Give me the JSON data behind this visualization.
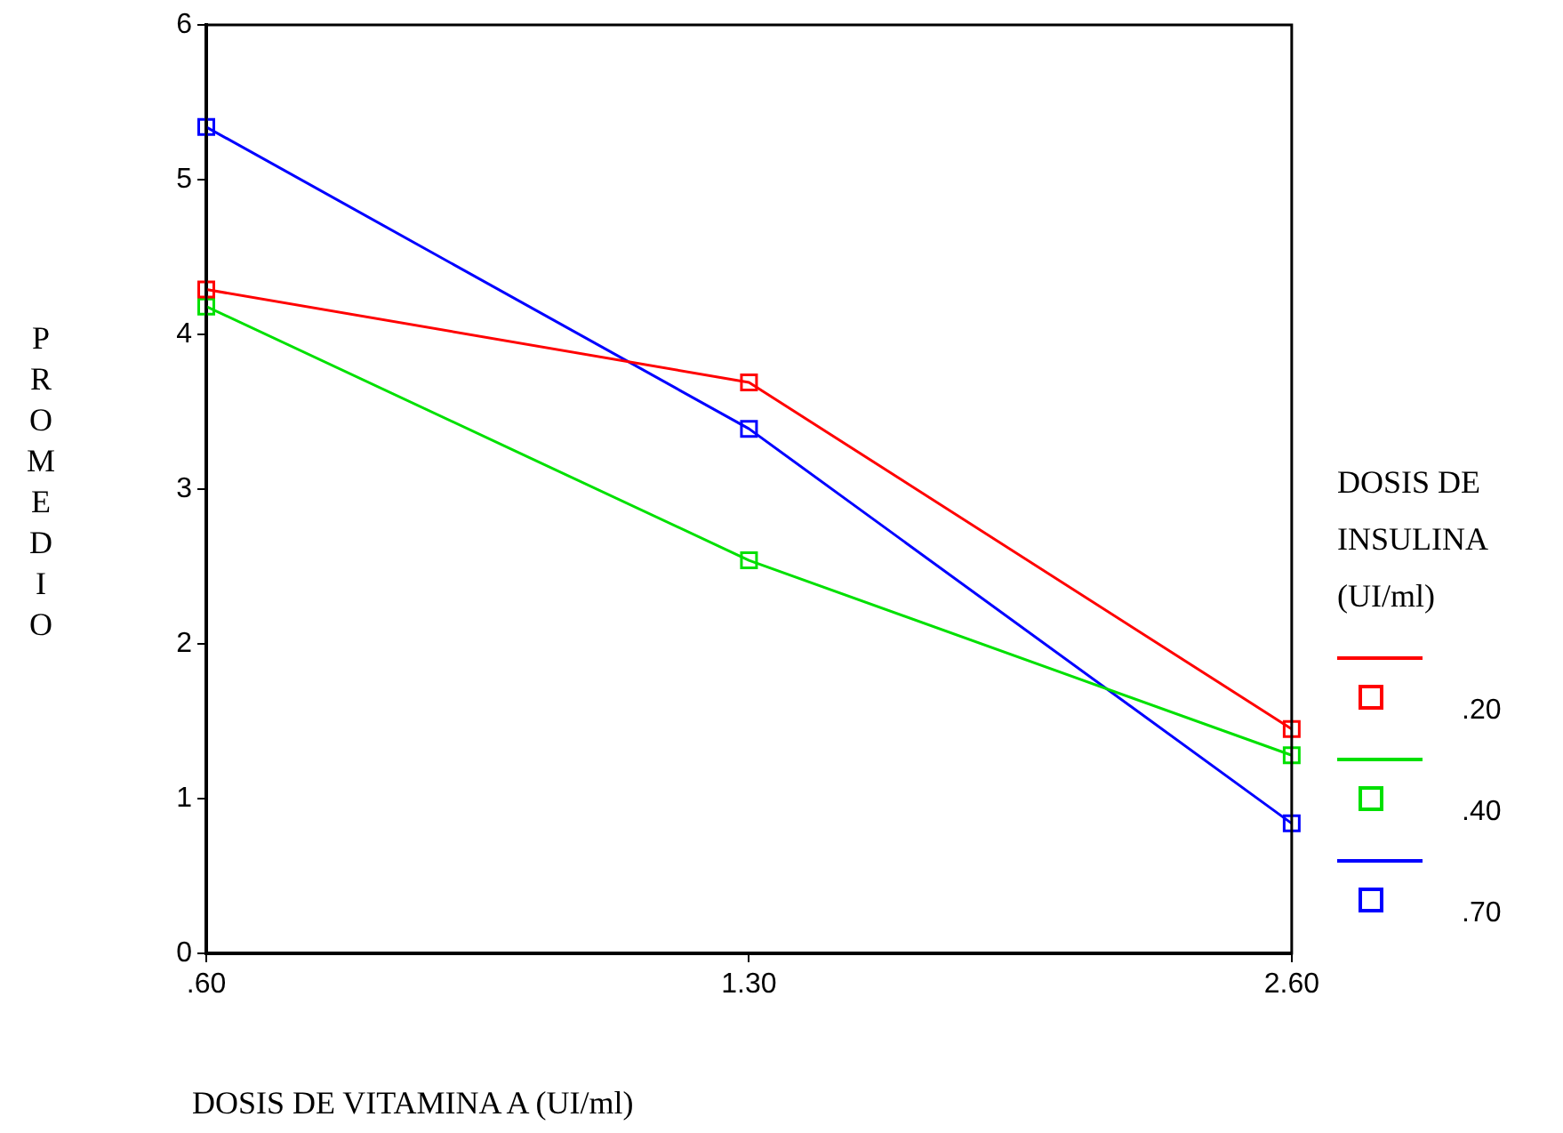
{
  "chart_data": {
    "type": "line",
    "xlabel": "DOSIS DE VITAMINA A (UI/ml)",
    "ylabel": "PROMEDIO",
    "legend_title": "DOSIS DE INSULINA (UI/ml)",
    "categories": [
      ".60",
      "1.30",
      "2.60"
    ],
    "series": [
      {
        "name": ".20",
        "color": "#ff0000",
        "values": [
          4.29,
          3.69,
          1.45
        ]
      },
      {
        "name": ".40",
        "color": "#00e000",
        "values": [
          4.18,
          2.54,
          1.28
        ]
      },
      {
        "name": ".70",
        "color": "#0000ff",
        "values": [
          5.34,
          3.39,
          0.84
        ]
      }
    ],
    "ylim": [
      0,
      6
    ],
    "yticks": [
      0,
      1,
      2,
      3,
      4,
      5,
      6
    ],
    "grid": false,
    "legend": "right",
    "marker": "square",
    "line_style": "solid"
  }
}
